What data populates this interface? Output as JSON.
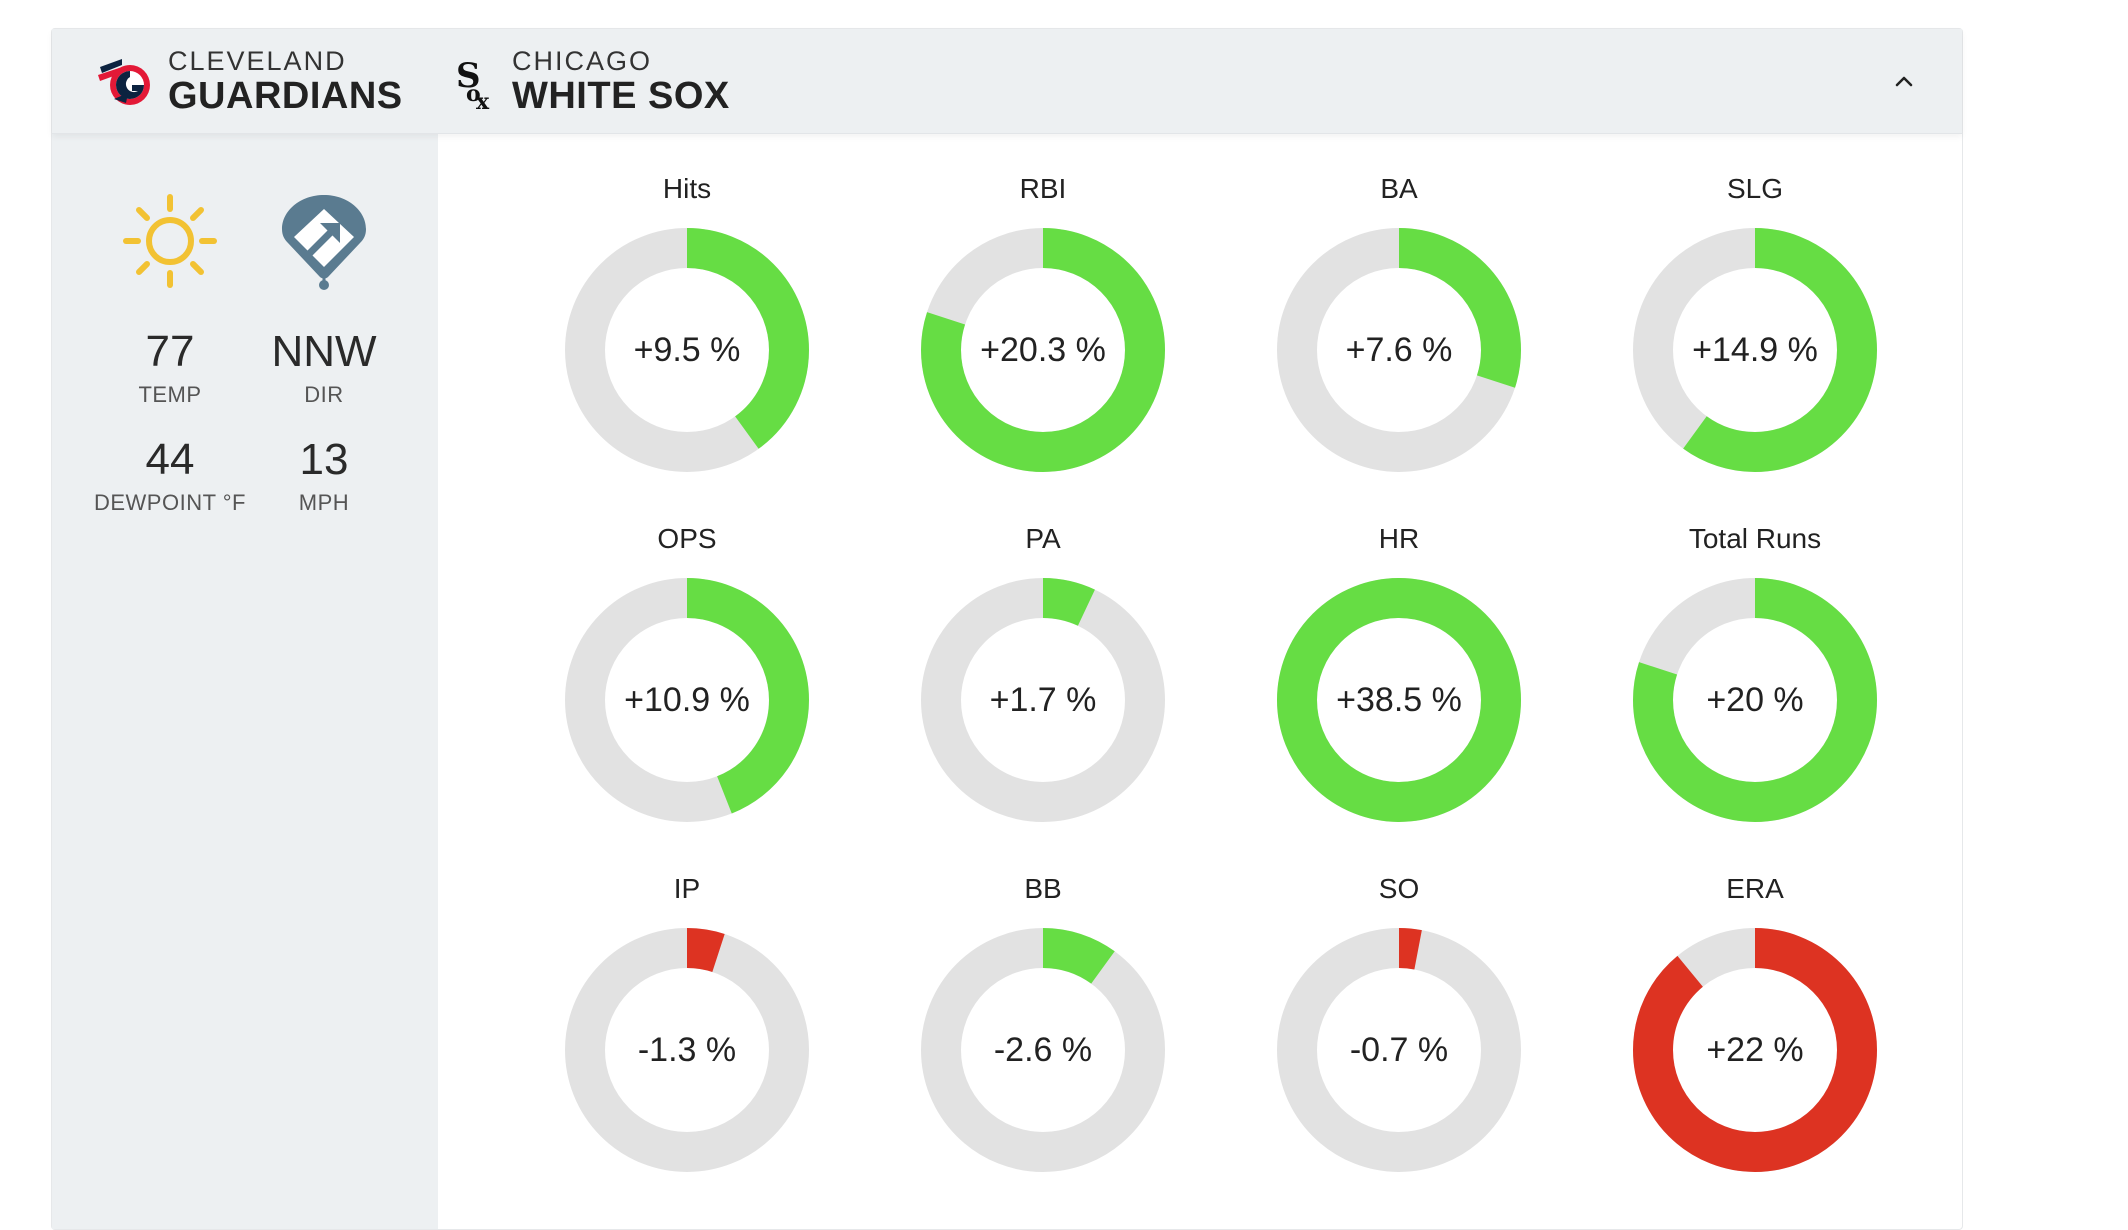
{
  "header": {
    "home": {
      "city": "CLEVELAND",
      "name": "GUARDIANS",
      "logo": "guardians-logo"
    },
    "away": {
      "city": "CHICAGO",
      "name": "WHITE SOX",
      "logo": "white-sox-logo"
    },
    "collapse_icon": "chevron-up-icon"
  },
  "weather": {
    "condition_icon": "sun-icon",
    "wind_icon": "wind-direction-field-icon",
    "temp": {
      "value": "77",
      "label": "TEMP"
    },
    "dir": {
      "value": "NNW",
      "label": "DIR"
    },
    "dewpoint": {
      "value": "44",
      "label": "DEWPOINT °F"
    },
    "mph": {
      "value": "13",
      "label": "MPH"
    }
  },
  "colors": {
    "positive": "#66dd44",
    "negative": "#dd3322",
    "track": "#e2e2e2",
    "sun": "#f2c233",
    "field": "#5a7b90"
  },
  "metrics": [
    {
      "title": "Hits",
      "label": "+9.5 %",
      "fraction": 0.4,
      "color": "positive"
    },
    {
      "title": "RBI",
      "label": "+20.3 %",
      "fraction": 0.8,
      "color": "positive"
    },
    {
      "title": "BA",
      "label": "+7.6 %",
      "fraction": 0.3,
      "color": "positive"
    },
    {
      "title": "SLG",
      "label": "+14.9 %",
      "fraction": 0.6,
      "color": "positive"
    },
    {
      "title": "OPS",
      "label": "+10.9 %",
      "fraction": 0.44,
      "color": "positive"
    },
    {
      "title": "PA",
      "label": "+1.7 %",
      "fraction": 0.07,
      "color": "positive"
    },
    {
      "title": "HR",
      "label": "+38.5 %",
      "fraction": 1.0,
      "color": "positive"
    },
    {
      "title": "Total Runs",
      "label": "+20 %",
      "fraction": 0.8,
      "color": "positive"
    },
    {
      "title": "IP",
      "label": "-1.3 %",
      "fraction": 0.05,
      "color": "negative"
    },
    {
      "title": "BB",
      "label": "-2.6 %",
      "fraction": 0.1,
      "color": "positive"
    },
    {
      "title": "SO",
      "label": "-0.7 %",
      "fraction": 0.03,
      "color": "negative"
    },
    {
      "title": "ERA",
      "label": "+22 %",
      "fraction": 0.89,
      "color": "negative"
    }
  ]
}
